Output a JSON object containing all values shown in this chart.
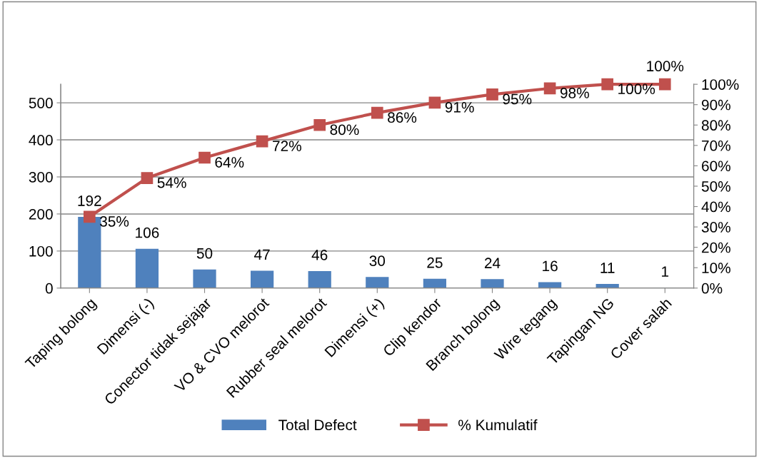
{
  "chart_data": {
    "type": "bar",
    "categories": [
      "Taping bolong",
      "Dimensi (-)",
      "Conector tidak sejajar",
      "VO & CVO melorot",
      "Rubber seal melorot",
      "Dimensi (+)",
      "Clip kendor",
      "Branch bolong",
      "Wire tegang",
      "Tapingan NG",
      "Cover salah"
    ],
    "series": [
      {
        "name": "Total Defect",
        "color": "#4f81bd",
        "values": [
          192,
          106,
          50,
          47,
          46,
          30,
          25,
          24,
          16,
          11,
          1
        ],
        "value_labels": [
          "192",
          "106",
          "50",
          "47",
          "46",
          "30",
          "25",
          "24",
          "16",
          "11",
          "1"
        ]
      },
      {
        "name": "% Kumulatif",
        "type": "line",
        "axis": "y2",
        "color": "#c0504d",
        "marker": "square",
        "values": [
          35,
          54,
          64,
          72,
          80,
          86,
          91,
          95,
          98,
          100,
          100
        ],
        "value_labels": [
          "35%",
          "54%",
          "64%",
          "72%",
          "80%",
          "86%",
          "91%",
          "95%",
          "98%",
          "100%",
          "100%"
        ]
      }
    ],
    "ylim": [
      0,
      550
    ],
    "yticks": [
      0,
      100,
      200,
      300,
      400,
      500
    ],
    "y2lim": [
      0,
      100
    ],
    "y2ticks": [
      {
        "value": 0,
        "label": "0%"
      },
      {
        "value": 10,
        "label": "10%"
      },
      {
        "value": 20,
        "label": "20%"
      },
      {
        "value": 30,
        "label": "30%"
      },
      {
        "value": 40,
        "label": "40%"
      },
      {
        "value": 50,
        "label": "50%"
      },
      {
        "value": 60,
        "label": "60%"
      },
      {
        "value": 70,
        "label": "70%"
      },
      {
        "value": 80,
        "label": "80%"
      },
      {
        "value": 90,
        "label": "90%"
      },
      {
        "value": 100,
        "label": "100%"
      }
    ],
    "grid": "y",
    "legend": "bottom"
  }
}
